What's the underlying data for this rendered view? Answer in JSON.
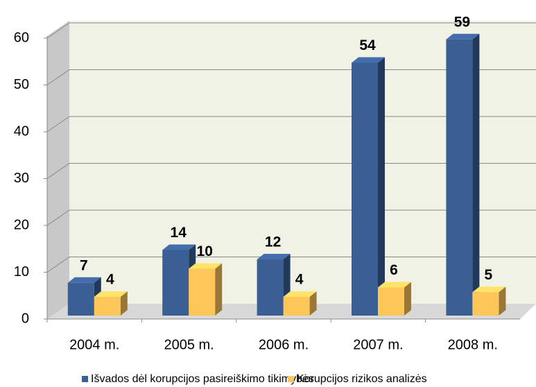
{
  "chart_data": {
    "type": "bar3d",
    "categories": [
      "2004 m.",
      "2005 m.",
      "2006 m.",
      "2007 m.",
      "2008 m."
    ],
    "series": [
      {
        "name": "Išvados dėl korupcijos pasireiškimo tikimybės",
        "color": "#3a5f95",
        "values": [
          7,
          14,
          12,
          54,
          59
        ]
      },
      {
        "name": "Korupcijos rizikos analizės",
        "color": "#ffc65a",
        "values": [
          4,
          10,
          4,
          6,
          5
        ]
      }
    ],
    "ylim": [
      0,
      60
    ],
    "yticks": [
      0,
      10,
      20,
      30,
      40,
      50,
      60
    ],
    "grid": true
  }
}
